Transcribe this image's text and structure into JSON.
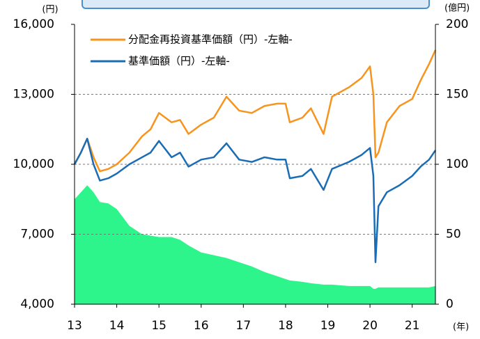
{
  "chart_data": {
    "type": "line_area",
    "y_unit": "(円)",
    "y2_unit": "(億円)",
    "x_unit": "(年)",
    "x": [
      13.0,
      13.15,
      13.3,
      13.45,
      13.6,
      13.8,
      14.0,
      14.3,
      14.6,
      14.8,
      15.0,
      15.3,
      15.5,
      15.7,
      16.0,
      16.3,
      16.6,
      16.9,
      17.2,
      17.5,
      17.8,
      18.0,
      18.1,
      18.4,
      18.6,
      18.9,
      19.1,
      19.5,
      19.8,
      20.0,
      20.08,
      20.13,
      20.2,
      20.4,
      20.7,
      21.0,
      21.2,
      21.4,
      21.55
    ],
    "series": [
      {
        "name": "分配金再投資基準価額（円）-左軸-",
        "color": "#f7941d",
        "kind": "line",
        "values": [
          10000,
          10500,
          11100,
          10300,
          9700,
          9800,
          10000,
          10500,
          11200,
          11500,
          12200,
          11800,
          11900,
          11300,
          11700,
          12000,
          12900,
          12300,
          12200,
          12500,
          12600,
          12600,
          11800,
          12000,
          12400,
          11300,
          12900,
          13300,
          13700,
          14200,
          13000,
          10300,
          10500,
          11800,
          12500,
          12800,
          13600,
          14300,
          14900
        ]
      },
      {
        "name": "基準価額（円）-左軸-",
        "color": "#1a6cb5",
        "kind": "line",
        "values": [
          10000,
          10500,
          11100,
          10000,
          9300,
          9400,
          9600,
          10000,
          10300,
          10500,
          11000,
          10300,
          10500,
          9900,
          10200,
          10300,
          10900,
          10200,
          10100,
          10300,
          10200,
          10200,
          9400,
          9500,
          9800,
          8900,
          9800,
          10100,
          10400,
          10700,
          9500,
          5800,
          8200,
          8800,
          9100,
          9500,
          9900,
          10200,
          10600
        ]
      },
      {
        "color": "#2df58c",
        "kind": "area",
        "axis": "y2",
        "values": [
          75,
          80,
          85,
          80,
          73,
          72,
          68,
          56,
          50,
          49,
          48,
          48,
          46,
          42,
          37,
          35,
          33,
          30,
          27,
          23,
          20,
          18,
          17,
          16,
          15,
          14,
          14,
          13,
          13,
          13,
          11,
          11,
          12,
          12,
          12,
          12,
          12,
          12,
          13
        ]
      }
    ],
    "xlim": [
      13,
      21.55
    ],
    "xticks": [
      13,
      14,
      15,
      16,
      17,
      18,
      19,
      20,
      21
    ],
    "ylim": [
      4000,
      16000
    ],
    "yticks": [
      {
        "value": 4000,
        "label": "4,000"
      },
      {
        "value": 7000,
        "label": "7,000"
      },
      {
        "value": 10000,
        "label": "10,000"
      },
      {
        "value": 13000,
        "label": "13,000"
      },
      {
        "value": 16000,
        "label": "16,000"
      }
    ],
    "y2lim": [
      0,
      200
    ],
    "y2ticks": [
      0,
      50,
      100,
      150,
      200
    ],
    "grid": true,
    "legend": "upper left"
  }
}
